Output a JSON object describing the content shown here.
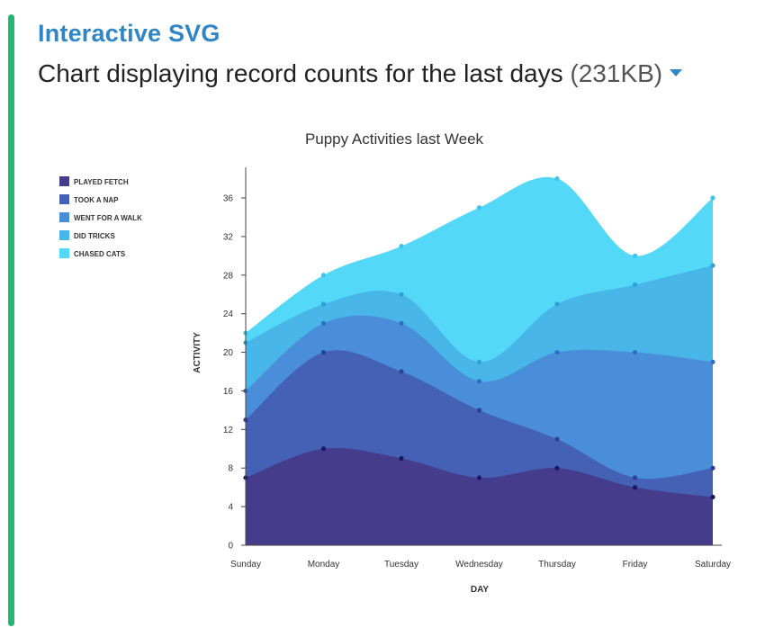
{
  "header": {
    "title": "Interactive SVG",
    "subtitle": "Chart displaying record counts for the last days",
    "size": "(231KB)"
  },
  "chart_data": {
    "type": "area",
    "stacked": true,
    "smooth": true,
    "title": "Puppy Activities last Week",
    "xlabel": "DAY",
    "ylabel": "ACTIVITY",
    "categories": [
      "Sunday",
      "Monday",
      "Tuesday",
      "Wednesday",
      "Thursday",
      "Friday",
      "Saturday"
    ],
    "ylim": [
      0,
      38
    ],
    "yticks": [
      0,
      4,
      8,
      12,
      16,
      20,
      24,
      28,
      32,
      36
    ],
    "legend_position": "left",
    "series": [
      {
        "name": "PLAYED FETCH",
        "color": "#453c8c",
        "values": [
          7,
          10,
          9,
          7,
          8,
          6,
          5
        ]
      },
      {
        "name": "TOOK A NAP",
        "color": "#4561b5",
        "values": [
          6,
          10,
          9,
          7,
          3,
          1,
          3
        ]
      },
      {
        "name": "WENT FOR A WALK",
        "color": "#4a8dd9",
        "values": [
          3,
          3,
          5,
          3,
          9,
          13,
          11
        ]
      },
      {
        "name": "DID TRICKS",
        "color": "#48b6e8",
        "values": [
          5,
          2,
          3,
          2,
          5,
          7,
          10
        ]
      },
      {
        "name": "CHASED CATS",
        "color": "#54d8f7",
        "values": [
          1,
          3,
          5,
          16,
          13,
          3,
          7
        ]
      }
    ]
  }
}
